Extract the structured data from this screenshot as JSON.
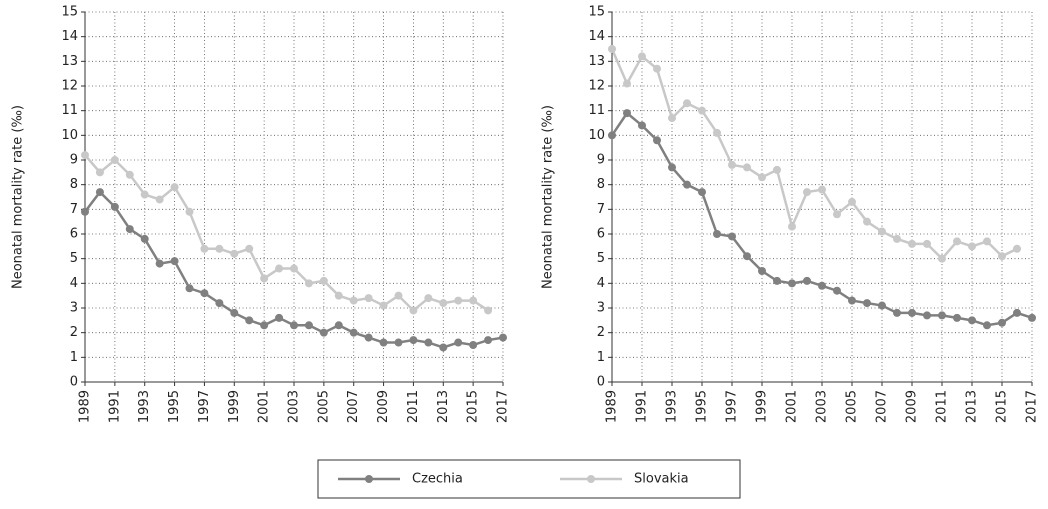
{
  "chart_data": [
    {
      "type": "line",
      "ylabel": "Neonatal mortality rate (‰)",
      "x": [
        1989,
        1990,
        1991,
        1992,
        1993,
        1994,
        1995,
        1996,
        1997,
        1998,
        1999,
        2000,
        2001,
        2002,
        2003,
        2004,
        2005,
        2006,
        2007,
        2008,
        2009,
        2010,
        2011,
        2012,
        2013,
        2014,
        2015,
        2016,
        2017
      ],
      "series": [
        {
          "name": "Czechia",
          "color": "#808080",
          "values": [
            6.9,
            7.7,
            7.1,
            6.2,
            5.8,
            4.8,
            4.9,
            3.8,
            3.6,
            3.2,
            2.8,
            2.5,
            2.3,
            2.6,
            2.3,
            2.3,
            2.0,
            2.3,
            2.0,
            1.8,
            1.6,
            1.6,
            1.7,
            1.6,
            1.4,
            1.6,
            1.5,
            1.7,
            1.8
          ]
        },
        {
          "name": "Slovakia",
          "color": "#c8c8c8",
          "values": [
            9.2,
            8.5,
            9.0,
            8.4,
            7.6,
            7.4,
            7.9,
            6.9,
            5.4,
            5.4,
            5.2,
            5.4,
            4.2,
            4.6,
            4.6,
            4.0,
            4.1,
            3.5,
            3.3,
            3.4,
            3.1,
            3.5,
            2.9,
            3.4,
            3.2,
            3.3,
            3.3,
            2.9,
            null
          ]
        }
      ],
      "xlim": [
        1989,
        2017
      ],
      "xticks": [
        1989,
        1991,
        1993,
        1995,
        1997,
        1999,
        2001,
        2003,
        2005,
        2007,
        2009,
        2011,
        2013,
        2015,
        2017
      ],
      "ylim": [
        0,
        15
      ],
      "yticks": [
        0,
        1,
        2,
        3,
        4,
        5,
        6,
        7,
        8,
        9,
        10,
        11,
        12,
        13,
        14,
        15
      ],
      "grid": true
    },
    {
      "type": "line",
      "ylabel": "Neonatal mortality rate (‰)",
      "x": [
        1989,
        1990,
        1991,
        1992,
        1993,
        1994,
        1995,
        1996,
        1997,
        1998,
        1999,
        2000,
        2001,
        2002,
        2003,
        2004,
        2005,
        2006,
        2007,
        2008,
        2009,
        2010,
        2011,
        2012,
        2013,
        2014,
        2015,
        2016,
        2017
      ],
      "series": [
        {
          "name": "Czechia",
          "color": "#808080",
          "values": [
            10.0,
            10.9,
            10.4,
            9.8,
            8.7,
            8.0,
            7.7,
            6.0,
            5.9,
            5.1,
            4.5,
            4.1,
            4.0,
            4.1,
            3.9,
            3.7,
            3.3,
            3.2,
            3.1,
            2.8,
            2.8,
            2.7,
            2.7,
            2.6,
            2.5,
            2.3,
            2.4,
            2.8,
            2.6
          ]
        },
        {
          "name": "Slovakia",
          "color": "#c8c8c8",
          "values": [
            13.5,
            12.1,
            13.2,
            12.7,
            10.7,
            11.3,
            11.0,
            10.1,
            8.8,
            8.7,
            8.3,
            8.6,
            6.3,
            7.7,
            7.8,
            6.8,
            7.3,
            6.5,
            6.1,
            5.8,
            5.6,
            5.6,
            5.0,
            5.7,
            5.5,
            5.7,
            5.1,
            5.4,
            null
          ]
        }
      ],
      "xlim": [
        1989,
        2017
      ],
      "xticks": [
        1989,
        1991,
        1993,
        1995,
        1997,
        1999,
        2001,
        2003,
        2005,
        2007,
        2009,
        2011,
        2013,
        2015,
        2017
      ],
      "ylim": [
        0,
        15
      ],
      "yticks": [
        0,
        1,
        2,
        3,
        4,
        5,
        6,
        7,
        8,
        9,
        10,
        11,
        12,
        13,
        14,
        15
      ],
      "grid": true
    }
  ]
}
